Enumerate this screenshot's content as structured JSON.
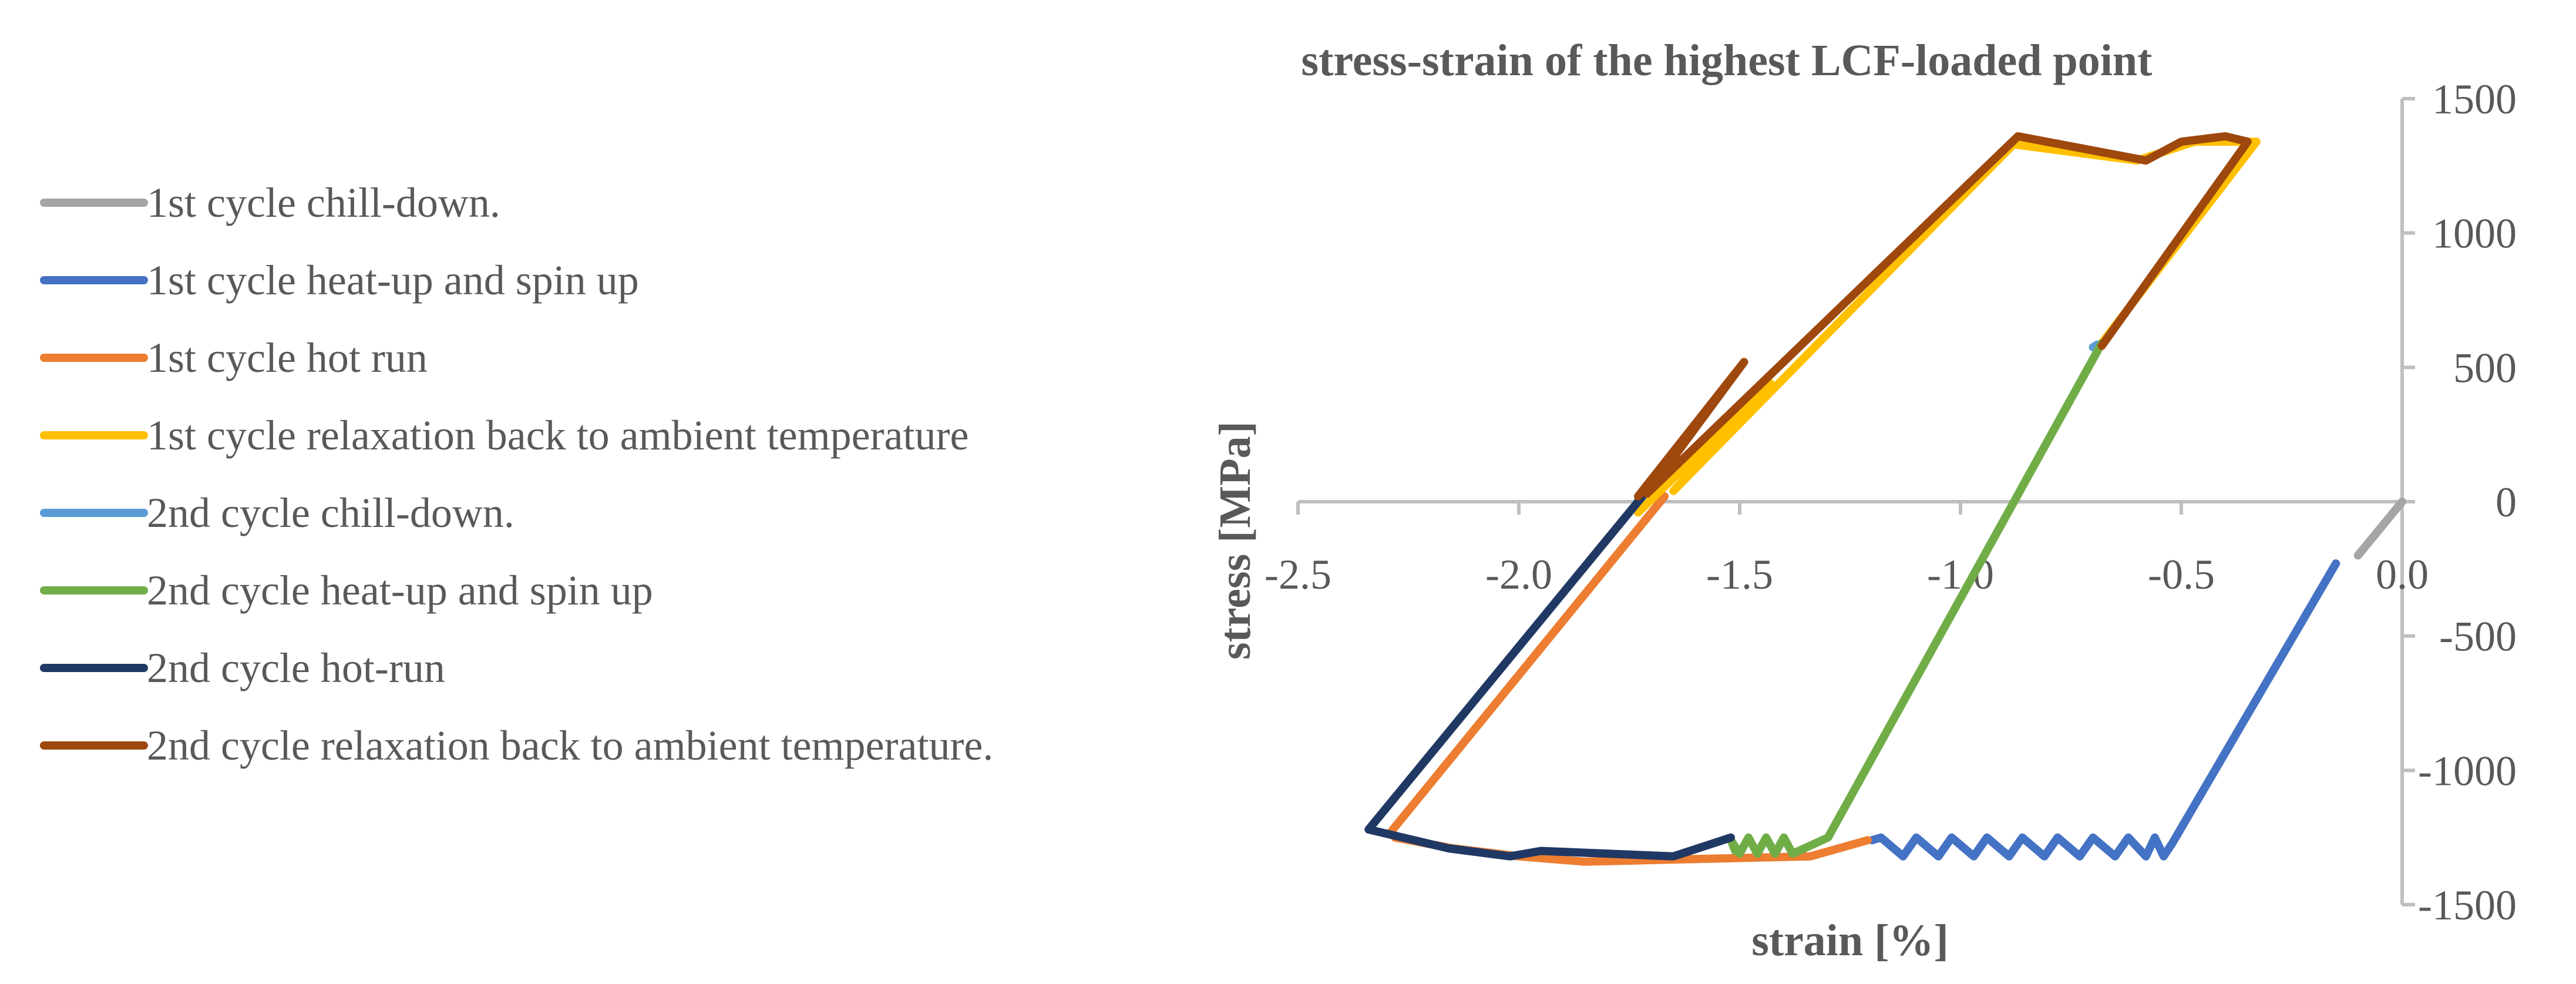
{
  "chart_data": {
    "type": "line",
    "title": "stress-strain of the highest LCF-loaded point",
    "xlabel": "strain [%]",
    "ylabel": "stress [MPa]",
    "xlim": [
      -2.5,
      0.0
    ],
    "ylim": [
      -1500,
      1500
    ],
    "x_ticks": [
      -2.5,
      -2.0,
      -1.5,
      -1.0,
      -0.5,
      0.0
    ],
    "x_tick_labels": [
      "-2.5",
      "-2.0",
      "-1.5",
      "-1.0",
      "-0.5",
      "0.0"
    ],
    "y_ticks": [
      1500,
      1000,
      500,
      0,
      -500,
      -1000,
      -1500
    ],
    "y_tick_labels": [
      "1500",
      "1000",
      "500",
      "0",
      "-500",
      "-1000",
      "-1500"
    ],
    "grid": false,
    "legend_position": "left",
    "series": [
      {
        "name": "1st cycle chill-down.",
        "color": "#a5a5a5",
        "x": [
          0.0,
          -0.1
        ],
        "y": [
          0,
          -200
        ]
      },
      {
        "name": "1st cycle heat-up and spin up",
        "color": "#4472c4",
        "x": [
          -0.15,
          -0.52,
          -0.54,
          -0.56,
          -0.58,
          -0.62,
          -0.65,
          -0.7,
          -0.73,
          -0.78,
          -0.81,
          -0.86,
          -0.89,
          -0.94,
          -0.97,
          -1.02,
          -1.05,
          -1.1,
          -1.13,
          -1.18,
          -1.2
        ],
        "y": [
          -230,
          -1270,
          -1320,
          -1250,
          -1320,
          -1250,
          -1320,
          -1250,
          -1320,
          -1250,
          -1320,
          -1250,
          -1320,
          -1250,
          -1320,
          -1250,
          -1320,
          -1250,
          -1320,
          -1250,
          -1260
        ]
      },
      {
        "name": "1st cycle hot run",
        "color": "#ed7d31",
        "x": [
          -1.21,
          -1.34,
          -1.6,
          -1.85,
          -2.0,
          -2.15,
          -2.28,
          -2.29,
          -1.67
        ],
        "y": [
          -1260,
          -1320,
          -1330,
          -1340,
          -1320,
          -1290,
          -1250,
          -1230,
          20
        ]
      },
      {
        "name": "1st cycle relaxation back to ambient temperature",
        "color": "#ffc000",
        "x": [
          -1.73,
          -1.43,
          -1.65,
          -0.88,
          -0.6,
          -0.47,
          -0.33,
          -0.68
        ],
        "y": [
          -40,
          440,
          40,
          1330,
          1270,
          1340,
          1340,
          590
        ]
      },
      {
        "name": "2nd cycle chill-down.",
        "color": "#5b9bd5",
        "x": [
          -0.69,
          -0.7
        ],
        "y": [
          585,
          575
        ]
      },
      {
        "name": "2nd cycle heat-up and spin up",
        "color": "#70ad47",
        "x": [
          -0.68,
          -1.3,
          -1.38,
          -1.4,
          -1.42,
          -1.44,
          -1.46,
          -1.48,
          -1.5,
          -1.52,
          -1.51
        ],
        "y": [
          590,
          -1250,
          -1310,
          -1250,
          -1310,
          -1250,
          -1310,
          -1250,
          -1310,
          -1260,
          -1300
        ]
      },
      {
        "name": "2nd cycle hot-run",
        "color": "#203864",
        "x": [
          -1.52,
          -1.65,
          -1.95,
          -2.02,
          -2.16,
          -2.34,
          -1.69
        ],
        "y": [
          -1250,
          -1320,
          -1300,
          -1320,
          -1290,
          -1220,
          80
        ]
      },
      {
        "name": "2nd cycle relaxation back to ambient temperature.",
        "color": "#9e480e",
        "x": [
          -1.73,
          -1.49,
          -1.71,
          -0.87,
          -0.58,
          -0.5,
          -0.4,
          -0.35,
          -0.68
        ],
        "y": [
          20,
          520,
          30,
          1360,
          1270,
          1340,
          1360,
          1340,
          580
        ]
      }
    ]
  }
}
